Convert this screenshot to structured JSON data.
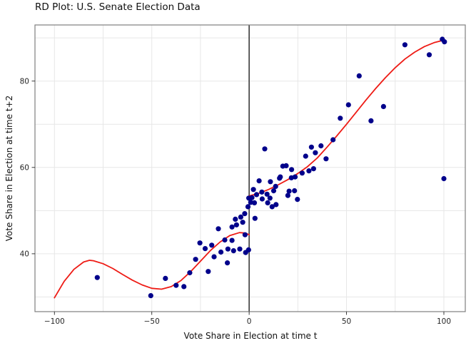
{
  "chart_data": {
    "type": "scatter",
    "title": "RD Plot: U.S. Senate Election Data",
    "xlabel": "Vote Share in Election at time t",
    "ylabel": "Vote Share in Election at time t+2",
    "xlim": [
      -110,
      111
    ],
    "ylim": [
      26.6,
      93.0
    ],
    "x_ticks": [
      -100,
      -50,
      0,
      50,
      100
    ],
    "x_tick_labels": [
      "−100",
      "−50",
      "0",
      "50",
      "100"
    ],
    "y_ticks": [
      40,
      60,
      80
    ],
    "y_tick_labels": [
      "40",
      "60",
      "80"
    ],
    "x_gridlines": [
      -100,
      -75,
      -50,
      -25,
      25,
      50,
      75,
      100
    ],
    "y_gridlines": [
      30,
      40,
      50,
      60,
      70,
      80,
      90
    ],
    "grid": true,
    "legend": "none",
    "cutoff_line_x": 0,
    "colors": {
      "points": "#00008B",
      "fit_line": "#EE1B15",
      "cutoff_line": "#3A3A3A",
      "grid": "#E7E7E7",
      "border": "#7F7F7F",
      "text": "#262626"
    },
    "points": [
      [
        -78,
        34.5
      ],
      [
        -50.5,
        30.3
      ],
      [
        -43,
        34.3
      ],
      [
        -37.5,
        32.7
      ],
      [
        -33.5,
        32.4
      ],
      [
        -30.5,
        35.6
      ],
      [
        -27.5,
        38.7
      ],
      [
        -25.3,
        42.5
      ],
      [
        -22.6,
        41.2
      ],
      [
        -21,
        35.9
      ],
      [
        -19.2,
        42.0
      ],
      [
        -18,
        39.3
      ],
      [
        -15.8,
        45.8
      ],
      [
        -14.5,
        40.4
      ],
      [
        -12.5,
        43.2
      ],
      [
        -11.2,
        37.9
      ],
      [
        -10.9,
        41.1
      ],
      [
        -8.8,
        46.2
      ],
      [
        -8.8,
        43.1
      ],
      [
        -8,
        40.7
      ],
      [
        -7.1,
        48.0
      ],
      [
        -6.5,
        46.7
      ],
      [
        -4.8,
        41.1
      ],
      [
        -4.3,
        48.5
      ],
      [
        -3.3,
        47.3
      ],
      [
        -2.3,
        49.3
      ],
      [
        -2.1,
        44.4
      ],
      [
        -1.8,
        40.3
      ],
      [
        -0.6,
        50.9
      ],
      [
        -0.3,
        40.9
      ],
      [
        -0.2,
        52.9
      ],
      [
        0.8,
        51.9
      ],
      [
        1.4,
        53.0
      ],
      [
        2.2,
        54.9
      ],
      [
        2.7,
        51.8
      ],
      [
        3.0,
        48.2
      ],
      [
        3.8,
        53.7
      ],
      [
        5.1,
        56.9
      ],
      [
        6.5,
        54.3
      ],
      [
        6.7,
        52.7
      ],
      [
        8.0,
        64.3
      ],
      [
        9.2,
        53.8
      ],
      [
        9.5,
        51.8
      ],
      [
        10.7,
        52.9
      ],
      [
        10.9,
        56.7
      ],
      [
        11.8,
        50.9
      ],
      [
        12.6,
        54.6
      ],
      [
        13.6,
        55.6
      ],
      [
        13.8,
        51.4
      ],
      [
        15.6,
        57.5
      ],
      [
        16.0,
        57.8
      ],
      [
        17.3,
        60.3
      ],
      [
        19.0,
        60.4
      ],
      [
        19.9,
        53.5
      ],
      [
        20.5,
        54.5
      ],
      [
        21.7,
        57.6
      ],
      [
        21.8,
        59.5
      ],
      [
        23.3,
        54.6
      ],
      [
        23.6,
        57.8
      ],
      [
        24.8,
        52.6
      ],
      [
        27.2,
        58.7
      ],
      [
        29.0,
        62.6
      ],
      [
        30.7,
        59.2
      ],
      [
        32.0,
        64.7
      ],
      [
        33.1,
        59.7
      ],
      [
        34.0,
        63.4
      ],
      [
        36.9,
        65.0
      ],
      [
        39.5,
        62.0
      ],
      [
        43.1,
        66.4
      ],
      [
        46.8,
        71.4
      ],
      [
        51.0,
        74.5
      ],
      [
        56.5,
        81.2
      ],
      [
        62.6,
        70.8
      ],
      [
        69.0,
        74.1
      ],
      [
        80.0,
        88.4
      ],
      [
        92.5,
        86.1
      ],
      [
        99.2,
        89.7
      ],
      [
        100.3,
        89.1
      ],
      [
        100.0,
        57.4
      ]
    ],
    "fit_left": [
      [
        -100,
        29.8
      ],
      [
        -95,
        33.6
      ],
      [
        -90,
        36.4
      ],
      [
        -85,
        38.1
      ],
      [
        -82,
        38.5
      ],
      [
        -80,
        38.4
      ],
      [
        -75,
        37.7
      ],
      [
        -70,
        36.6
      ],
      [
        -65,
        35.2
      ],
      [
        -60,
        33.9
      ],
      [
        -55,
        32.8
      ],
      [
        -50,
        32.0
      ],
      [
        -45,
        31.8
      ],
      [
        -40,
        32.4
      ],
      [
        -35,
        33.8
      ],
      [
        -30,
        35.9
      ],
      [
        -25,
        38.3
      ],
      [
        -20,
        40.7
      ],
      [
        -15,
        42.7
      ],
      [
        -10,
        44.2
      ],
      [
        -5,
        44.9
      ],
      [
        -2,
        44.8
      ],
      [
        0,
        44.4
      ]
    ],
    "fit_right": [
      [
        0,
        53.4
      ],
      [
        5,
        54.0
      ],
      [
        10,
        54.9
      ],
      [
        15,
        56.0
      ],
      [
        20,
        57.2
      ],
      [
        25,
        58.6
      ],
      [
        30,
        60.2
      ],
      [
        35,
        62.2
      ],
      [
        40,
        64.7
      ],
      [
        45,
        67.3
      ],
      [
        50,
        70.0
      ],
      [
        55,
        72.8
      ],
      [
        60,
        75.6
      ],
      [
        65,
        78.3
      ],
      [
        70,
        80.8
      ],
      [
        75,
        83.1
      ],
      [
        80,
        85.1
      ],
      [
        85,
        86.7
      ],
      [
        90,
        88.0
      ],
      [
        95,
        88.9
      ],
      [
        100,
        89.5
      ]
    ]
  }
}
